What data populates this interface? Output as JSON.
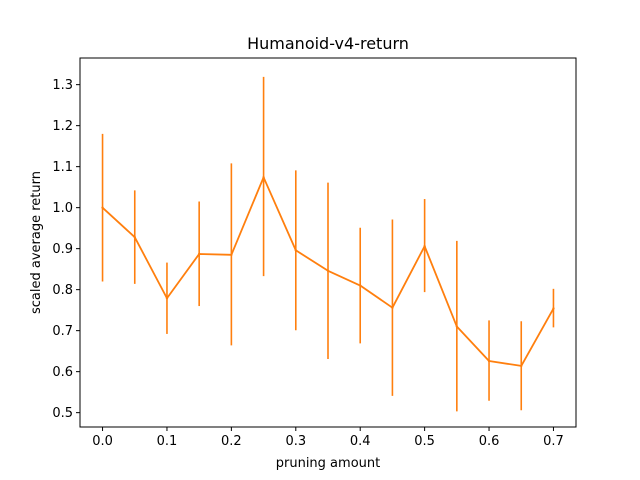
{
  "chart_data": {
    "type": "line",
    "title": "Humanoid-v4-return",
    "xlabel": "pruning amount",
    "ylabel": "scaled average return",
    "xlim": [
      -0.035,
      0.735
    ],
    "ylim": [
      0.465,
      1.365
    ],
    "xticks": [
      "0.0",
      "0.1",
      "0.2",
      "0.3",
      "0.4",
      "0.5",
      "0.6",
      "0.7"
    ],
    "xtick_values": [
      0.0,
      0.1,
      0.2,
      0.3,
      0.4,
      0.5,
      0.6,
      0.7
    ],
    "yticks": [
      "0.5",
      "0.6",
      "0.7",
      "0.8",
      "0.9",
      "1.0",
      "1.1",
      "1.2",
      "1.3"
    ],
    "ytick_values": [
      0.5,
      0.6,
      0.7,
      0.8,
      0.9,
      1.0,
      1.1,
      1.2,
      1.3
    ],
    "grid": false,
    "legend": "none",
    "color": "#ff7f0e",
    "series": [
      {
        "x": [
          0.0,
          0.05,
          0.1,
          0.15,
          0.2,
          0.25,
          0.3,
          0.35,
          0.4,
          0.45,
          0.5,
          0.55,
          0.6,
          0.65,
          0.7
        ],
        "y": [
          1.0,
          0.928,
          0.779,
          0.887,
          0.885,
          1.074,
          0.896,
          0.846,
          0.81,
          0.756,
          0.906,
          0.71,
          0.626,
          0.614,
          0.754
        ],
        "err_low": [
          0.82,
          0.814,
          0.692,
          0.76,
          0.664,
          0.833,
          0.701,
          0.631,
          0.669,
          0.541,
          0.794,
          0.503,
          0.529,
          0.506,
          0.708
        ],
        "err_high": [
          1.18,
          1.042,
          0.866,
          1.015,
          1.108,
          1.319,
          1.091,
          1.061,
          0.951,
          0.971,
          1.021,
          0.919,
          0.725,
          0.723,
          0.802
        ]
      }
    ]
  }
}
